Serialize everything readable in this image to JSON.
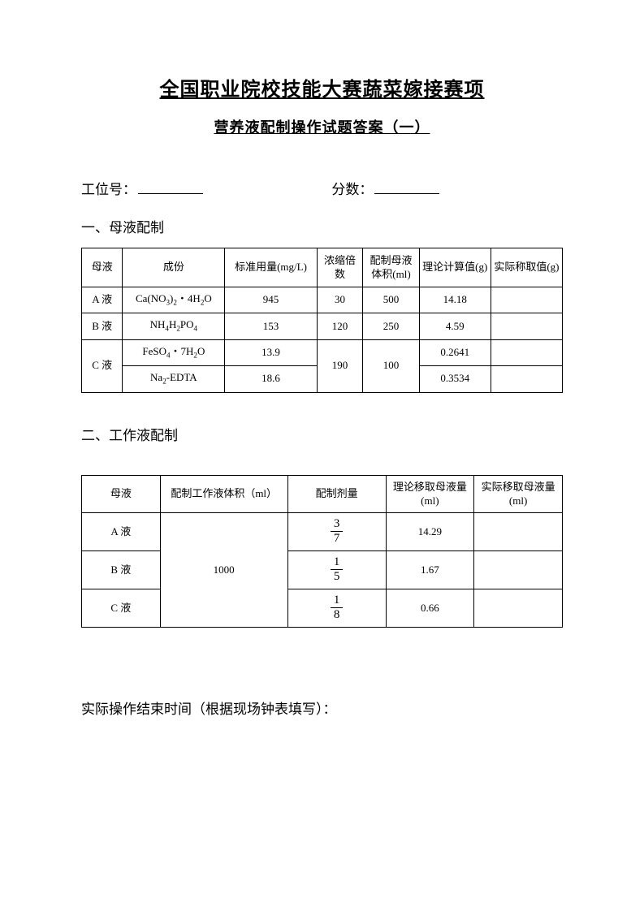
{
  "title": "全国职业院校技能大赛蔬菜嫁接赛项",
  "subtitle": "营养液配制操作试题答案（一）",
  "labels": {
    "station": "工位号：",
    "score": "分数：",
    "section1": "一、母液配制",
    "section2": "二、工作液配制",
    "endline": "实际操作结束时间（根据现场钟表填写）："
  },
  "table1": {
    "headers": {
      "muye": "母液",
      "chengfen": "成份",
      "biaozhun": "标准用量(mg/L)",
      "nongsuo": "浓缩倍数",
      "tiji": "配制母液体积(ml)",
      "lilun": "理论计算值(g)",
      "shiji": "实际称取值(g)"
    },
    "rows": [
      {
        "muye": "A 液",
        "chengfen_html": "Ca(NO<span class='sub'>3</span>)<span class='sub'>2</span>・4H<span class='sub'>2</span>O",
        "biaozhun": "945",
        "nongsuo": "30",
        "tiji": "500",
        "lilun": "14.18",
        "shiji": ""
      },
      {
        "muye": "B 液",
        "chengfen_html": "NH<span class='sub'>4</span>H<span class='sub'>2</span>PO<span class='sub'>4</span>",
        "biaozhun": "153",
        "nongsuo": "120",
        "tiji": "250",
        "lilun": "4.59",
        "shiji": ""
      },
      {
        "muye": "C 液",
        "chengfen_html": "FeSO<span class='sub'>4</span>・7H<span class='sub'>2</span>O",
        "biaozhun": "13.9",
        "nongsuo": "190",
        "tiji": "100",
        "lilun": "0.2641",
        "shiji": ""
      },
      {
        "chengfen_html": "Na<span class='sub'>2</span>-EDTA",
        "biaozhun": "18.6",
        "lilun": "0.3534",
        "shiji": ""
      }
    ]
  },
  "table2": {
    "headers": {
      "muye": "母液",
      "tiji": "配制工作液体积（ml）",
      "jiliang": "配制剂量",
      "lilun": "理论移取母液量(ml)",
      "shiji": "实际移取母液量(ml)"
    },
    "rows": [
      {
        "muye": "A 液",
        "tiji": "1000",
        "frac_num": "3",
        "frac_den": "7",
        "lilun": "14.29",
        "shiji": ""
      },
      {
        "muye": "B 液",
        "frac_num": "1",
        "frac_den": "5",
        "lilun": "1.67",
        "shiji": ""
      },
      {
        "muye": "C 液",
        "frac_num": "1",
        "frac_den": "8",
        "lilun": "0.66",
        "shiji": ""
      }
    ]
  }
}
